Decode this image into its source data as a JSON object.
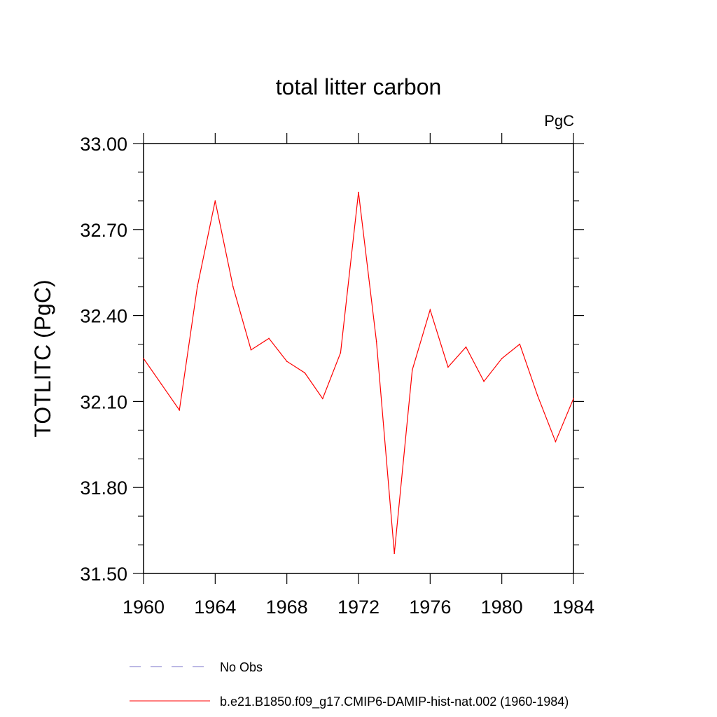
{
  "chart_data": {
    "type": "line",
    "title": "total litter carbon",
    "units_label": "PgC",
    "ylabel": "TOTLITC  (PgC)",
    "xlabel": "",
    "xlim": [
      1960,
      1984
    ],
    "ylim": [
      31.5,
      33.0
    ],
    "x_ticks": [
      "1960",
      "1964",
      "1968",
      "1972",
      "1976",
      "1980",
      "1984"
    ],
    "y_ticks": [
      "31.50",
      "31.80",
      "32.10",
      "32.40",
      "32.70",
      "33.00"
    ],
    "grid": false,
    "legend_position": "bottom",
    "x": [
      1960,
      1961,
      1962,
      1963,
      1964,
      1965,
      1966,
      1967,
      1968,
      1969,
      1970,
      1971,
      1972,
      1973,
      1974,
      1975,
      1976,
      1977,
      1978,
      1979,
      1980,
      1981,
      1982,
      1983,
      1984
    ],
    "series": [
      {
        "name": "b.e21.B1850.f09_g17.CMIP6-DAMIP-hist-nat.002 (1960-1984)",
        "color": "#ff0000",
        "style": "solid",
        "values": [
          32.25,
          32.16,
          32.07,
          32.5,
          32.8,
          32.5,
          32.28,
          32.32,
          32.24,
          32.2,
          32.11,
          32.27,
          32.83,
          32.31,
          31.57,
          32.21,
          32.42,
          32.22,
          32.29,
          32.17,
          32.25,
          32.3,
          32.12,
          31.96,
          32.11
        ]
      }
    ],
    "legend": [
      {
        "label": "No Obs",
        "color": "#7a70c8",
        "style": "dashed"
      },
      {
        "label": "b.e21.B1850.f09_g17.CMIP6-DAMIP-hist-nat.002 (1960-1984)",
        "color": "#ff0000",
        "style": "solid"
      }
    ]
  }
}
